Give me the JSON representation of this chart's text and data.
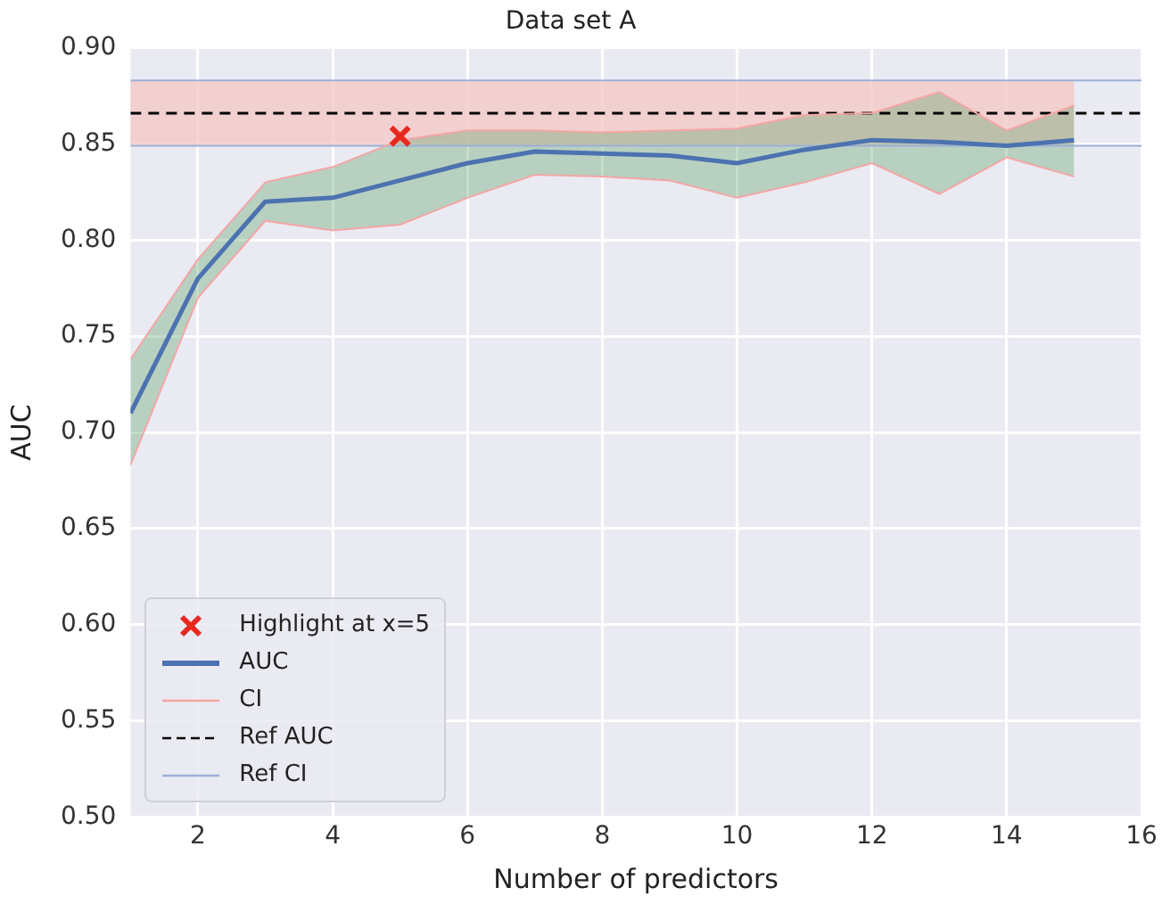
{
  "chart_data": {
    "type": "line",
    "title": "Data set A",
    "xlabel": "Number of predictors",
    "ylabel": "AUC",
    "xlim": [
      1,
      16
    ],
    "xticks": [
      2,
      4,
      6,
      8,
      10,
      12,
      14,
      16
    ],
    "ylim": [
      0.5,
      0.9
    ],
    "yticks": [
      {
        "value": 0.5,
        "label": "0.50"
      },
      0.55,
      {
        "value": 0.6,
        "label": "0.60"
      },
      0.65,
      {
        "value": 0.7,
        "label": "0.70"
      },
      0.75,
      {
        "value": 0.8,
        "label": "0.80"
      },
      0.85,
      {
        "value": 0.9,
        "label": "0.90"
      }
    ],
    "grid": true,
    "legend": "bottom left",
    "bands": [
      {
        "axis": "y",
        "from": 0.849,
        "to": 0.883,
        "color": "#f2c9c6"
      }
    ],
    "series": [
      {
        "type": "scatter",
        "name": "Highlight at x=5",
        "color": "#e8291f",
        "marker": "cross",
        "x": [
          5
        ],
        "values": [
          0.854
        ]
      },
      {
        "name": "AUC",
        "color": "#4c72b0",
        "x": [
          1,
          2,
          3,
          4,
          5,
          6,
          7,
          8,
          9,
          10,
          11,
          12,
          13,
          14,
          15
        ],
        "values": [
          0.71,
          0.78,
          0.82,
          0.822,
          0.831,
          0.84,
          0.846,
          0.845,
          0.844,
          0.84,
          0.847,
          0.852,
          0.851,
          0.849,
          0.852
        ],
        "lower": [
          0.683,
          0.77,
          0.81,
          0.805,
          0.808,
          0.822,
          0.834,
          0.833,
          0.831,
          0.822,
          0.83,
          0.84,
          0.824,
          0.843,
          0.833
        ],
        "upper": [
          0.738,
          0.79,
          0.83,
          0.838,
          0.852,
          0.857,
          0.857,
          0.856,
          0.857,
          0.858,
          0.865,
          0.866,
          0.877,
          0.857,
          0.87
        ]
      },
      {
        "name": "CI",
        "color": "#f4a6a6",
        "x": [
          1,
          2,
          3,
          4,
          5,
          6,
          7,
          8,
          9,
          10,
          11,
          12,
          13,
          14,
          15
        ],
        "values": [
          0.738,
          0.79,
          0.83,
          0.838,
          0.852,
          0.857,
          0.857,
          0.856,
          0.857,
          0.858,
          0.865,
          0.866,
          0.877,
          0.857,
          0.87
        ]
      },
      {
        "color": "#f4a6a6",
        "x": [
          1,
          2,
          3,
          4,
          5,
          6,
          7,
          8,
          9,
          10,
          11,
          12,
          13,
          14,
          15
        ],
        "values": [
          0.683,
          0.77,
          0.81,
          0.805,
          0.808,
          0.822,
          0.834,
          0.833,
          0.831,
          0.822,
          0.83,
          0.84,
          0.824,
          0.843,
          0.833
        ]
      },
      {
        "name": "Ref AUC",
        "color": "#000000",
        "line_style": "dashed",
        "x": [
          1,
          16
        ],
        "values": [
          0.866,
          0.866
        ]
      },
      {
        "name": "Ref CI",
        "color": "#9bb0d8",
        "x": [
          1,
          16
        ],
        "values": [
          0.883,
          0.883
        ]
      },
      {
        "color": "#9bb0d8",
        "x": [
          1,
          16
        ],
        "values": [
          0.849,
          0.849
        ]
      }
    ]
  }
}
